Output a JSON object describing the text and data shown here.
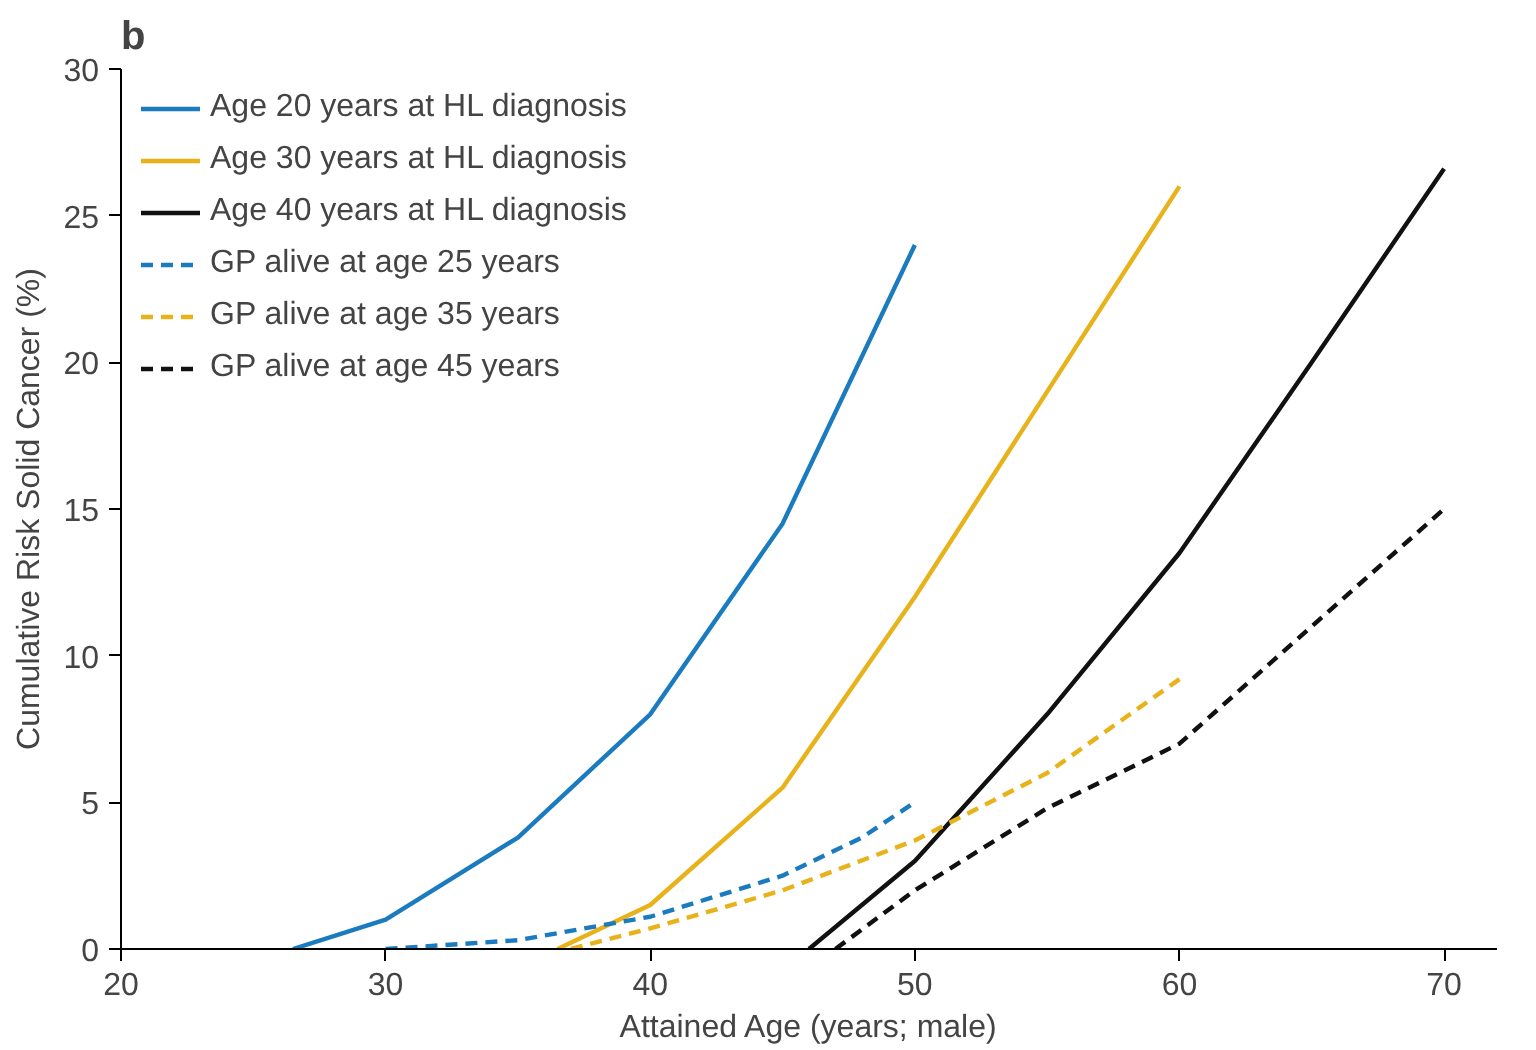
{
  "chart_data": {
    "type": "line",
    "title": "b",
    "xlabel": "Attained Age (years; male)",
    "ylabel": "Cumulative Risk Solid Cancer (%)",
    "xlim": [
      20,
      72
    ],
    "ylim": [
      0,
      30
    ],
    "xticks": [
      20,
      30,
      40,
      50,
      60,
      70
    ],
    "yticks": [
      0,
      5,
      10,
      15,
      20,
      25,
      30
    ],
    "grid": false,
    "legend": "top left",
    "series": [
      {
        "name": "Age 20 years at HL diagnosis",
        "color": "#1a7bbf",
        "line_style": "solid",
        "x": [
          26.5,
          30,
          35,
          40,
          45,
          50
        ],
        "values": [
          0,
          1.0,
          3.8,
          8.0,
          14.5,
          24
        ]
      },
      {
        "name": "Age 30 years at HL diagnosis",
        "color": "#e8b21a",
        "line_style": "solid",
        "x": [
          36.5,
          40,
          45,
          50,
          55,
          60
        ],
        "values": [
          0,
          1.5,
          5.5,
          12,
          19,
          26
        ]
      },
      {
        "name": "Age 40 years at HL diagnosis",
        "color": "#111111",
        "line_style": "solid",
        "x": [
          46,
          50,
          55,
          60,
          65,
          70
        ],
        "values": [
          0,
          3,
          8,
          13.5,
          20,
          26.6
        ]
      },
      {
        "name": "GP alive at age 25 years",
        "color": "#1a7bbf",
        "line_style": "dashed",
        "x": [
          30,
          35,
          40,
          45,
          48,
          50
        ],
        "values": [
          0,
          0.3,
          1.1,
          2.5,
          3.8,
          5
        ]
      },
      {
        "name": "GP alive at age 35 years",
        "color": "#e8b21a",
        "line_style": "dashed",
        "x": [
          37,
          40,
          45,
          50,
          55,
          60
        ],
        "values": [
          0,
          0.7,
          2,
          3.7,
          6,
          9.2
        ]
      },
      {
        "name": "GP alive at age 45 years",
        "color": "#111111",
        "line_style": "dashed",
        "x": [
          47,
          50,
          55,
          60,
          65,
          70
        ],
        "values": [
          0,
          2,
          4.8,
          7,
          11,
          15
        ]
      }
    ]
  }
}
